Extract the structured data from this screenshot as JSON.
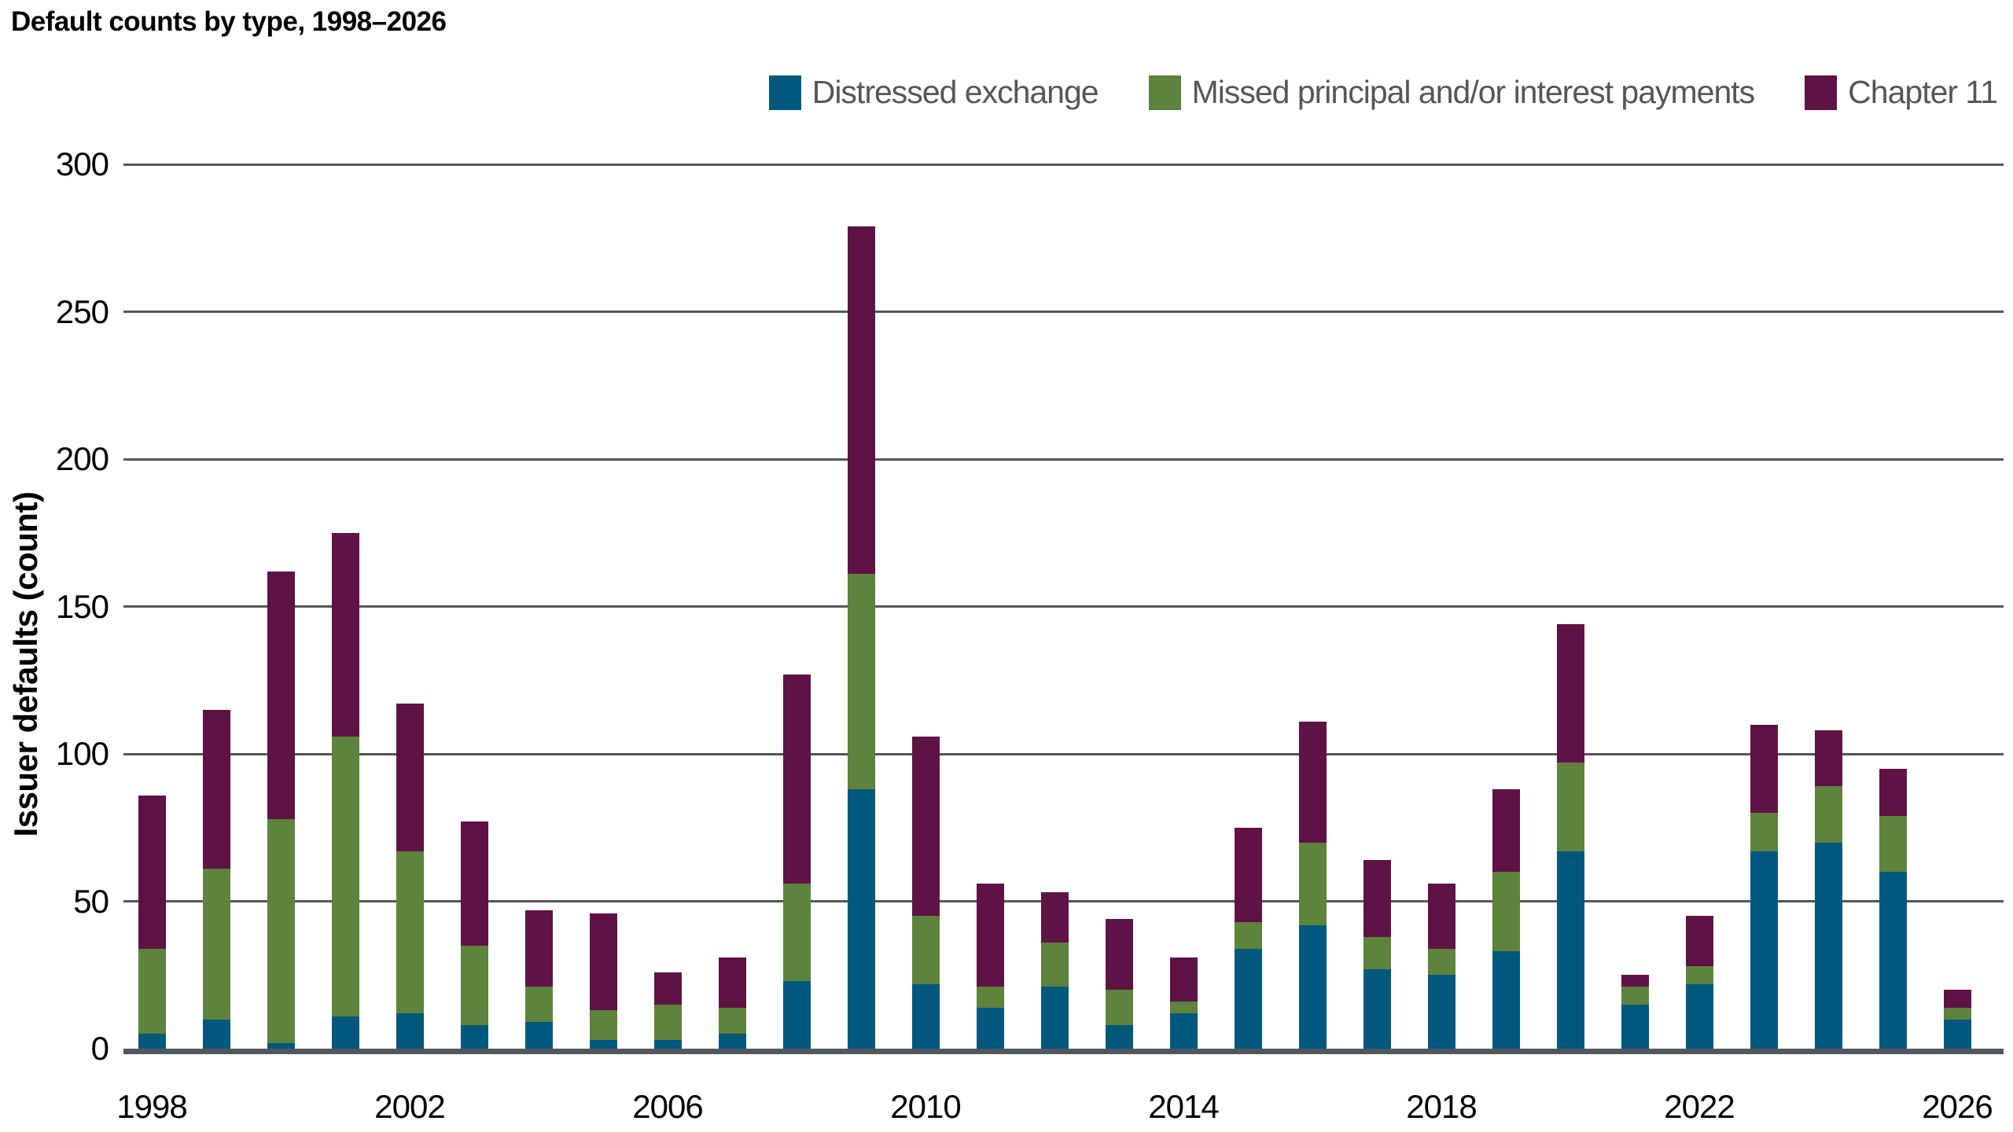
{
  "title": "Default counts by type, 1998–2026",
  "y_axis": {
    "label": "Issuer defaults (count)",
    "ticks": [
      0,
      50,
      100,
      150,
      200,
      250,
      300
    ]
  },
  "x_axis": {
    "labels": [
      "1998",
      "2002",
      "2006",
      "2010",
      "2014",
      "2018",
      "2022",
      "2026"
    ]
  },
  "colors": {
    "distressed_exchange": "#00587d",
    "missed_payments": "#5d833c",
    "chapter_11": "#5e1344",
    "gridline": "#54565b",
    "legend_text": "#54565a",
    "axis_text": "#000000"
  },
  "chart_data": {
    "type": "bar",
    "stacked": true,
    "title": "Default counts by type, 1998–2026",
    "xlabel": "",
    "ylabel": "Issuer defaults (count)",
    "ylim": [
      0,
      300
    ],
    "ytick_step": 50,
    "grid": true,
    "legend_position": "top-right",
    "x": [
      1998,
      1999,
      2000,
      2001,
      2002,
      2003,
      2004,
      2005,
      2006,
      2007,
      2008,
      2009,
      2010,
      2011,
      2012,
      2013,
      2014,
      2015,
      2016,
      2017,
      2018,
      2019,
      2020,
      2021,
      2022,
      2023,
      2024,
      2025,
      2026
    ],
    "series": [
      {
        "name": "Distressed exchange",
        "color": "#00587d",
        "values": [
          5,
          10,
          2,
          11,
          12,
          8,
          9,
          3,
          3,
          5,
          23,
          88,
          22,
          14,
          21,
          8,
          12,
          34,
          42,
          27,
          25,
          33,
          67,
          15,
          22,
          67,
          70,
          60,
          10
        ]
      },
      {
        "name": "Missed principal and/or interest payments",
        "color": "#5d833c",
        "values": [
          29,
          51,
          76,
          95,
          55,
          27,
          12,
          10,
          12,
          9,
          33,
          73,
          23,
          7,
          15,
          12,
          4,
          9,
          28,
          11,
          9,
          27,
          30,
          6,
          6,
          13,
          19,
          19,
          4
        ]
      },
      {
        "name": "Chapter 11",
        "color": "#5e1344",
        "values": [
          52,
          54,
          84,
          69,
          50,
          42,
          26,
          33,
          11,
          17,
          71,
          118,
          61,
          35,
          17,
          24,
          15,
          32,
          41,
          26,
          22,
          28,
          47,
          4,
          17,
          30,
          19,
          16,
          6
        ]
      }
    ],
    "totals": [
      86,
      115,
      162,
      175,
      117,
      77,
      47,
      46,
      26,
      31,
      127,
      279,
      106,
      56,
      53,
      44,
      31,
      75,
      111,
      64,
      56,
      88,
      144,
      25,
      45,
      110,
      108,
      95,
      20
    ]
  }
}
